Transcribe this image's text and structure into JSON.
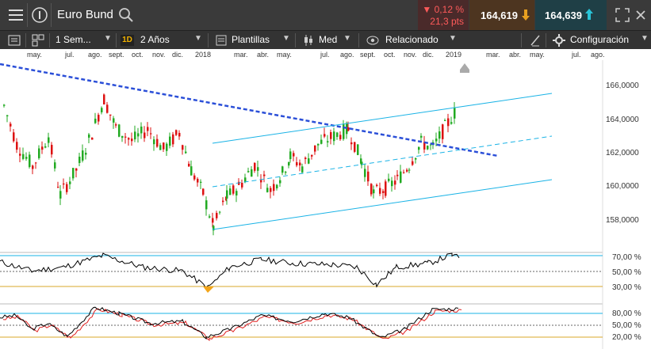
{
  "window": {
    "title": "Euro Bund",
    "change_pct": "▼ 0,12 %",
    "change_pts": "21,3 pts",
    "sell_price": "164,619",
    "buy_price": "164,639"
  },
  "toolbar": {
    "period": "1 Sem...",
    "interval_badge": "1D",
    "range": "2 Años",
    "templates": "Plantillas",
    "price_type": "Med",
    "related": "Relacionado",
    "settings": "Configuración"
  },
  "time_axis": {
    "labels": [
      "may.",
      "jul.",
      "ago.",
      "sept.",
      "oct.",
      "nov.",
      "dic.",
      "2018",
      "mar.",
      "abr.",
      "may.",
      "jul.",
      "ago.",
      "sept.",
      "oct.",
      "nov.",
      "dic.",
      "2019",
      "mar.",
      "abr.",
      "may.",
      "jul.",
      "ago."
    ]
  },
  "price_axis": {
    "labels": [
      "166,0000",
      "164,0000",
      "162,0000",
      "160,0000",
      "158,0000"
    ]
  },
  "rsi_axis": {
    "labels": [
      "70,00 %",
      "50,00 %",
      "30,00 %"
    ]
  },
  "stoch_axis": {
    "labels": [
      "80,00 %",
      "50,00 %",
      "20,00 %"
    ]
  },
  "colors": {
    "up_candle": "#22aa22",
    "down_candle": "#dd1111",
    "trend_line": "#2b4fd8",
    "channel": "#1ab3e6",
    "rsi_line": "#000000",
    "stoch_signal": "#e02020",
    "oversold_fill": "#f2a51a"
  }
}
